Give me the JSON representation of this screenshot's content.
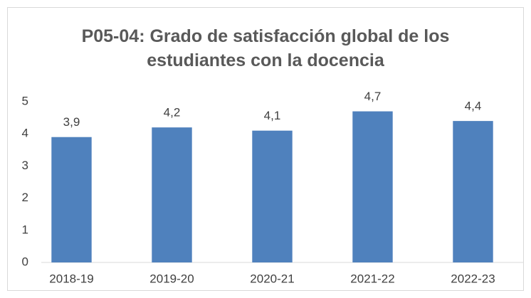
{
  "chart_data": {
    "type": "bar",
    "title": "P05-04: Grado de satisfacción global de los estudiantes con la docencia",
    "categories": [
      "2018-19",
      "2019-20",
      "2020-21",
      "2021-22",
      "2022-23"
    ],
    "values": [
      3.9,
      4.2,
      4.1,
      4.7,
      4.4
    ],
    "value_labels": [
      "3,9",
      "4,2",
      "4,1",
      "4,7",
      "4,4"
    ],
    "color": "#4f81bd",
    "ylim": [
      0,
      5
    ],
    "yticks": [
      0,
      1,
      2,
      3,
      4,
      5
    ],
    "grid": false
  }
}
